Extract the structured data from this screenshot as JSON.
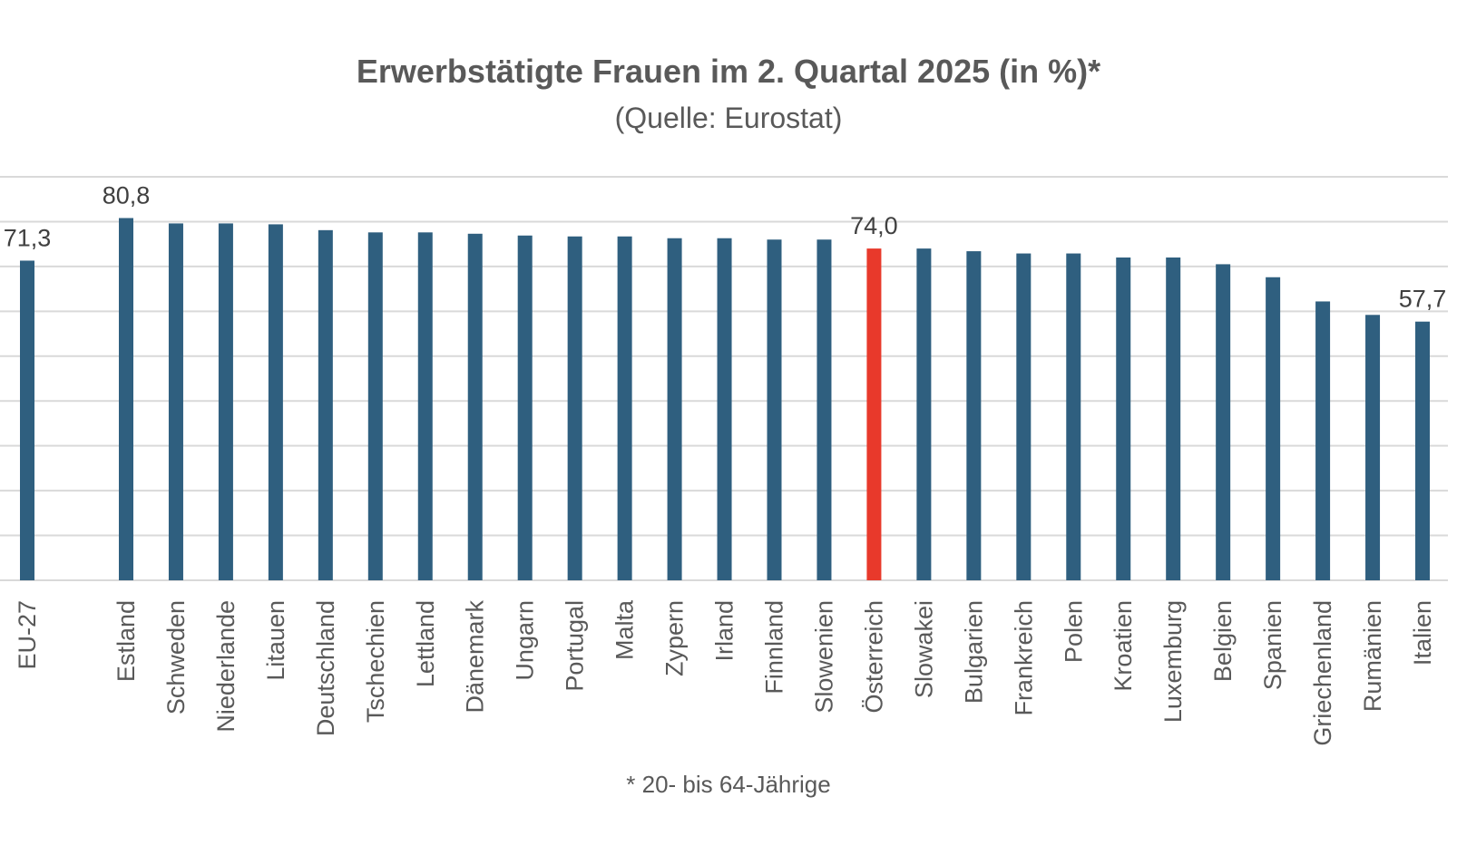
{
  "chart_data": {
    "type": "bar",
    "title": "Erwerbstätigte Frauen im 2. Quartal 2025 (in %)*",
    "subtitle": "(Quelle: Eurostat)",
    "footnote": "* 20- bis 64-Jährige",
    "categories": [
      "EU-27",
      "Estland",
      "Schweden",
      "Niederlande",
      "Litauen",
      "Deutschland",
      "Tschechien",
      "Lettland",
      "Dänemark",
      "Ungarn",
      "Portugal",
      "Malta",
      "Zypern",
      "Irland",
      "Finnland",
      "Slowenien",
      "Österreich",
      "Slowakei",
      "Bulgarien",
      "Frankreich",
      "Polen",
      "Kroatien",
      "Luxemburg",
      "Belgien",
      "Spanien",
      "Griechenland",
      "Rumänien",
      "Italien"
    ],
    "values": [
      71.3,
      80.8,
      79.6,
      79.6,
      79.4,
      78.1,
      77.6,
      77.6,
      77.3,
      76.9,
      76.7,
      76.7,
      76.3,
      76.3,
      76.0,
      76.0,
      74.0,
      74.0,
      73.4,
      72.9,
      72.9,
      72.0,
      72.0,
      70.5,
      67.6,
      62.2,
      59.2,
      57.7
    ],
    "data_labels": {
      "EU-27": "71,3",
      "Estland": "80,8",
      "Österreich": "74,0",
      "Italien": "57,7"
    },
    "ylim": [
      0,
      90
    ],
    "grid": true,
    "bar_color": "#2F5F7F",
    "highlight": {
      "category": "Österreich",
      "color": "#E8392B"
    }
  }
}
